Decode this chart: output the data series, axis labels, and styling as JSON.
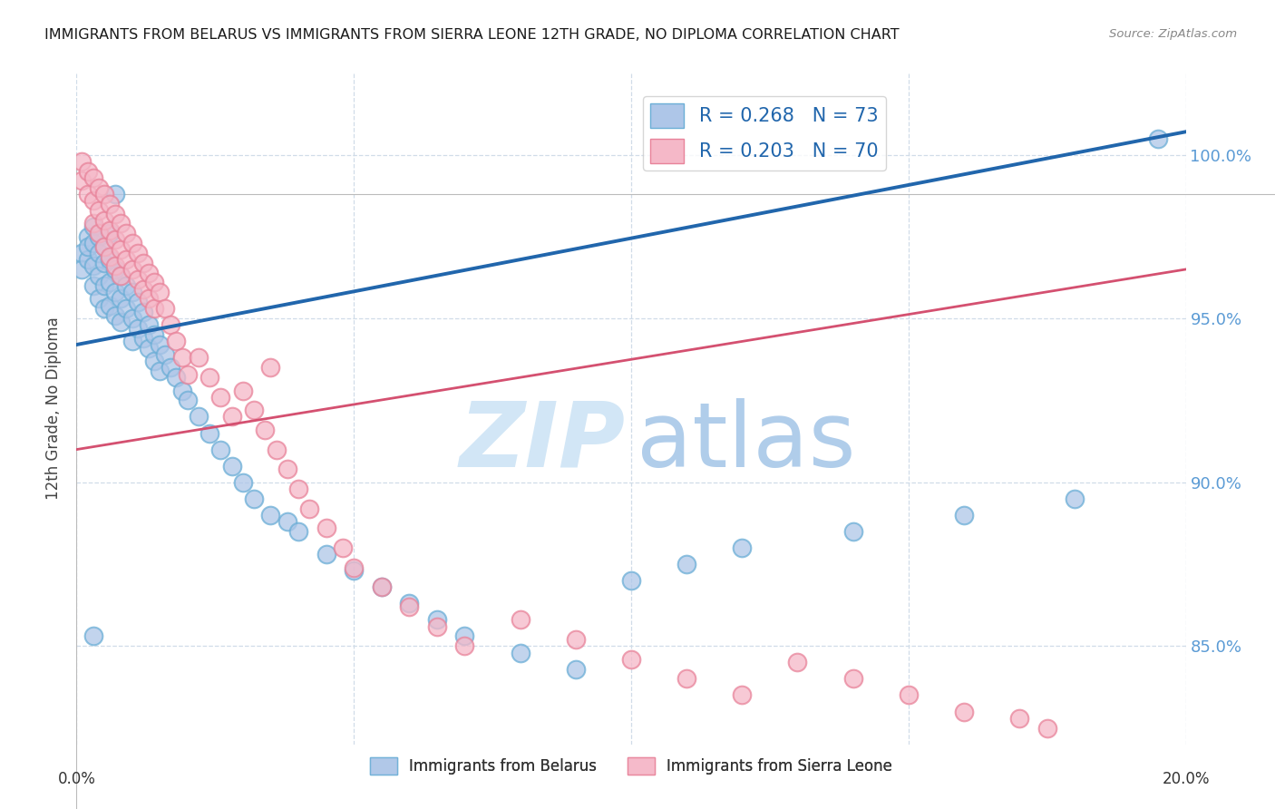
{
  "title": "IMMIGRANTS FROM BELARUS VS IMMIGRANTS FROM SIERRA LEONE 12TH GRADE, NO DIPLOMA CORRELATION CHART",
  "source": "Source: ZipAtlas.com",
  "ylabel": "12th Grade, No Diploma",
  "ytick_vals": [
    1.0,
    0.95,
    0.9,
    0.85
  ],
  "ytick_labels": [
    "100.0%",
    "95.0%",
    "90.0%",
    "85.0%"
  ],
  "xlim": [
    0.0,
    0.2
  ],
  "ylim": [
    0.82,
    1.025
  ],
  "legend_blue_R": "0.268",
  "legend_blue_N": "73",
  "legend_pink_R": "0.203",
  "legend_pink_N": "70",
  "legend_label_blue": "Immigrants from Belarus",
  "legend_label_pink": "Immigrants from Sierra Leone",
  "scatter_blue_x": [
    0.001,
    0.001,
    0.002,
    0.002,
    0.002,
    0.003,
    0.003,
    0.003,
    0.003,
    0.004,
    0.004,
    0.004,
    0.004,
    0.005,
    0.005,
    0.005,
    0.005,
    0.006,
    0.006,
    0.006,
    0.006,
    0.007,
    0.007,
    0.007,
    0.008,
    0.008,
    0.008,
    0.009,
    0.009,
    0.01,
    0.01,
    0.01,
    0.011,
    0.011,
    0.012,
    0.012,
    0.013,
    0.013,
    0.014,
    0.014,
    0.015,
    0.015,
    0.016,
    0.017,
    0.018,
    0.019,
    0.02,
    0.022,
    0.024,
    0.026,
    0.028,
    0.03,
    0.032,
    0.035,
    0.038,
    0.04,
    0.045,
    0.05,
    0.055,
    0.06,
    0.065,
    0.07,
    0.08,
    0.09,
    0.1,
    0.11,
    0.12,
    0.14,
    0.16,
    0.18,
    0.195,
    0.003,
    0.007
  ],
  "scatter_blue_y": [
    0.97,
    0.965,
    0.975,
    0.968,
    0.972,
    0.978,
    0.973,
    0.966,
    0.96,
    0.975,
    0.97,
    0.963,
    0.956,
    0.972,
    0.967,
    0.96,
    0.953,
    0.976,
    0.968,
    0.961,
    0.954,
    0.965,
    0.958,
    0.951,
    0.963,
    0.956,
    0.949,
    0.96,
    0.953,
    0.958,
    0.95,
    0.943,
    0.955,
    0.947,
    0.952,
    0.944,
    0.948,
    0.941,
    0.945,
    0.937,
    0.942,
    0.934,
    0.939,
    0.935,
    0.932,
    0.928,
    0.925,
    0.92,
    0.915,
    0.91,
    0.905,
    0.9,
    0.895,
    0.89,
    0.888,
    0.885,
    0.878,
    0.873,
    0.868,
    0.863,
    0.858,
    0.853,
    0.848,
    0.843,
    0.87,
    0.875,
    0.88,
    0.885,
    0.89,
    0.895,
    1.005,
    0.853,
    0.988
  ],
  "scatter_pink_x": [
    0.001,
    0.001,
    0.002,
    0.002,
    0.003,
    0.003,
    0.003,
    0.004,
    0.004,
    0.004,
    0.005,
    0.005,
    0.005,
    0.006,
    0.006,
    0.006,
    0.007,
    0.007,
    0.007,
    0.008,
    0.008,
    0.008,
    0.009,
    0.009,
    0.01,
    0.01,
    0.011,
    0.011,
    0.012,
    0.012,
    0.013,
    0.013,
    0.014,
    0.014,
    0.015,
    0.016,
    0.017,
    0.018,
    0.019,
    0.02,
    0.022,
    0.024,
    0.026,
    0.028,
    0.03,
    0.032,
    0.034,
    0.036,
    0.038,
    0.04,
    0.042,
    0.045,
    0.048,
    0.05,
    0.055,
    0.06,
    0.065,
    0.07,
    0.08,
    0.09,
    0.1,
    0.11,
    0.12,
    0.13,
    0.14,
    0.15,
    0.16,
    0.17,
    0.175,
    0.035
  ],
  "scatter_pink_y": [
    0.998,
    0.992,
    0.995,
    0.988,
    0.993,
    0.986,
    0.979,
    0.99,
    0.983,
    0.976,
    0.988,
    0.98,
    0.972,
    0.985,
    0.977,
    0.969,
    0.982,
    0.974,
    0.966,
    0.979,
    0.971,
    0.963,
    0.976,
    0.968,
    0.973,
    0.965,
    0.97,
    0.962,
    0.967,
    0.959,
    0.964,
    0.956,
    0.961,
    0.953,
    0.958,
    0.953,
    0.948,
    0.943,
    0.938,
    0.933,
    0.938,
    0.932,
    0.926,
    0.92,
    0.928,
    0.922,
    0.916,
    0.91,
    0.904,
    0.898,
    0.892,
    0.886,
    0.88,
    0.874,
    0.868,
    0.862,
    0.856,
    0.85,
    0.858,
    0.852,
    0.846,
    0.84,
    0.835,
    0.845,
    0.84,
    0.835,
    0.83,
    0.828,
    0.825,
    0.935
  ],
  "blue_line_x": [
    0.0,
    0.2
  ],
  "blue_line_y": [
    0.942,
    1.007
  ],
  "pink_line_x": [
    0.0,
    0.2
  ],
  "pink_line_y": [
    0.91,
    0.965
  ],
  "bg_color": "#ffffff",
  "blue_scatter_color": "#aec6e8",
  "blue_scatter_edge": "#6baed6",
  "pink_scatter_color": "#f5b8c8",
  "pink_scatter_edge": "#e8839a",
  "blue_line_color": "#2166ac",
  "pink_line_color": "#d45070",
  "axis_label_color": "#5b9bd5",
  "grid_color": "#d0dce8",
  "title_color": "#1a1a1a",
  "source_color": "#888888",
  "watermark_zip_color": "#cde4f5",
  "watermark_atlas_color": "#a8c8e8"
}
